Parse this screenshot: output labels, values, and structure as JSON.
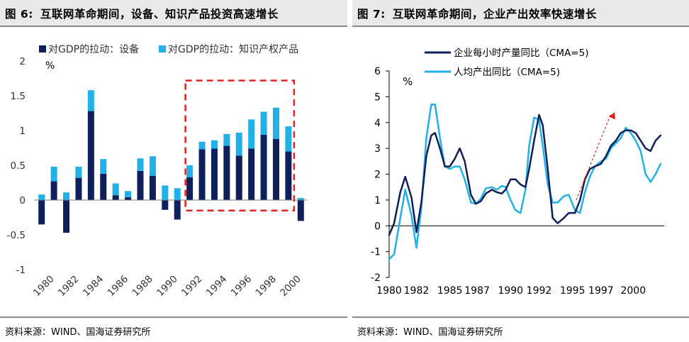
{
  "left": {
    "fig_label": "图 6:",
    "title": "互联网革命期间，设备、知识产品投资高速增长",
    "source": "资料来源：WIND、国海证券研究所",
    "chart_data": {
      "type": "bar",
      "stacked": true,
      "unit_label": "%",
      "ylim": [
        -1,
        2
      ],
      "yticks": [
        "2",
        "1.5",
        "1",
        "0.5",
        "0",
        "-0.5",
        "-1"
      ],
      "ytick_values": [
        2,
        1.5,
        1,
        0.5,
        0,
        -0.5,
        -1
      ],
      "categories": [
        1980,
        1981,
        1982,
        1983,
        1984,
        1985,
        1986,
        1987,
        1988,
        1989,
        1990,
        1991,
        1992,
        1993,
        1994,
        1995,
        1996,
        1997,
        1998,
        1999,
        2000,
        2001
      ],
      "xtick_labels": [
        "1980",
        "1982",
        "1984",
        "1986",
        "1988",
        "1990",
        "1992",
        "1994",
        "1996",
        "1998",
        "2000"
      ],
      "series": [
        {
          "name": "对GDP的拉动：设备",
          "color": "#0e1f5b",
          "values": [
            -0.35,
            0.27,
            -0.47,
            0.32,
            1.28,
            0.38,
            0.07,
            0.04,
            0.42,
            0.35,
            -0.14,
            -0.28,
            0.33,
            0.73,
            0.74,
            0.78,
            0.64,
            0.74,
            0.94,
            0.88,
            0.7,
            -0.3
          ]
        },
        {
          "name": "对GDP的拉动：知识产权产品",
          "color": "#21b1e8",
          "values": [
            0.08,
            0.21,
            0.11,
            0.16,
            0.3,
            0.21,
            0.17,
            0.09,
            0.18,
            0.28,
            0.21,
            0.17,
            0.17,
            0.11,
            0.12,
            0.17,
            0.33,
            0.42,
            0.33,
            0.45,
            0.36,
            0.03
          ]
        }
      ],
      "annotation": "red dashed box highlighting 1992–2000"
    }
  },
  "right": {
    "fig_label": "图 7:",
    "title": "互联网革命期间，企业产出效率快速增长",
    "source": "资料来源：WIND、国海证券研究所",
    "chart_data": {
      "type": "line",
      "unit_label": "%",
      "ylim": [
        -2,
        6
      ],
      "yticks": [
        "6",
        "5",
        "4",
        "3",
        "2",
        "1",
        "0",
        "-1",
        "-2"
      ],
      "ytick_values": [
        6,
        5,
        4,
        3,
        2,
        1,
        0,
        -1,
        -2
      ],
      "xlim": [
        1980,
        2002.2
      ],
      "xtick_values": [
        1980,
        1982.2,
        1984.9,
        1987.1,
        1989.8,
        1992.1,
        1994.8,
        1997.1,
        1999.7
      ],
      "xtick_labels": [
        "1980",
        "1982",
        "1985",
        "1987",
        "1990",
        "1992",
        "1995",
        "1997",
        "2000"
      ],
      "series": [
        {
          "name": "企业每小时产量同比（CMA=5)",
          "color": "#0e1f5b",
          "x": [
            1980,
            1980.4,
            1980.9,
            1981.3,
            1981.8,
            1982.2,
            1982.6,
            1983.0,
            1983.4,
            1983.7,
            1984.1,
            1984.5,
            1984.9,
            1985.3,
            1985.7,
            1986.1,
            1986.6,
            1987.0,
            1987.4,
            1987.8,
            1988.3,
            1988.7,
            1989.1,
            1989.4,
            1989.8,
            1990.2,
            1990.6,
            1991.0,
            1991.3,
            1991.7,
            1992.1,
            1992.4,
            1992.8,
            1993.2,
            1993.6,
            1994.1,
            1994.5,
            1995.0,
            1995.4,
            1995.8,
            1996.2,
            1996.6,
            1997.1,
            1997.5,
            1997.9,
            1998.3,
            1998.7,
            1999.1,
            1999.5,
            1999.9,
            2000.3,
            2000.7,
            2001.1,
            2001.5,
            2001.9
          ],
          "y": [
            -0.35,
            0.1,
            1.3,
            1.9,
            1.1,
            -0.25,
            0.9,
            2.7,
            3.5,
            3.6,
            3.0,
            2.3,
            2.3,
            2.6,
            3.0,
            2.5,
            1.2,
            0.85,
            0.95,
            1.25,
            1.4,
            1.3,
            1.25,
            1.4,
            1.8,
            1.8,
            1.6,
            1.5,
            2.2,
            3.3,
            4.3,
            3.9,
            2.2,
            0.3,
            0.1,
            0.3,
            0.5,
            0.5,
            1.0,
            1.8,
            2.2,
            2.3,
            2.4,
            2.7,
            3.1,
            3.3,
            3.6,
            3.7,
            3.7,
            3.6,
            3.3,
            3.0,
            2.9,
            3.3,
            3.5
          ]
        },
        {
          "name": "人均产出同比（CMA=5)",
          "color": "#21b1e8",
          "x": [
            1980,
            1980.4,
            1980.9,
            1981.3,
            1981.8,
            1982.2,
            1982.6,
            1983.0,
            1983.4,
            1983.7,
            1984.1,
            1984.5,
            1984.9,
            1985.3,
            1985.7,
            1986.1,
            1986.6,
            1987.0,
            1987.4,
            1987.8,
            1988.3,
            1988.7,
            1989.1,
            1989.4,
            1989.8,
            1990.2,
            1990.6,
            1991.0,
            1991.3,
            1991.7,
            1992.1,
            1992.4,
            1992.8,
            1993.2,
            1993.6,
            1994.1,
            1994.5,
            1995.0,
            1995.4,
            1995.8,
            1996.2,
            1996.6,
            1997.1,
            1997.5,
            1997.9,
            1998.3,
            1998.7,
            1999.1,
            1999.5,
            1999.9,
            2000.3,
            2000.7,
            2001.1,
            2001.5,
            2001.9
          ],
          "y": [
            -1.3,
            -1.1,
            0.3,
            1.4,
            0.4,
            -0.85,
            0.7,
            3.4,
            4.7,
            4.7,
            3.4,
            2.3,
            2.2,
            2.3,
            2.3,
            1.8,
            0.9,
            0.85,
            1.05,
            1.45,
            1.5,
            1.4,
            1.55,
            1.5,
            1.0,
            0.6,
            0.5,
            1.4,
            3.1,
            4.2,
            4.1,
            3.1,
            1.6,
            0.9,
            0.9,
            1.15,
            1.2,
            0.6,
            0.5,
            1.3,
            1.9,
            2.3,
            2.5,
            2.6,
            3.0,
            3.2,
            3.4,
            3.8,
            3.6,
            3.3,
            2.9,
            2.0,
            1.7,
            2.0,
            2.4
          ]
        }
      ],
      "annotation": "red dashed arrow indicating rising trend 1995–1998"
    }
  }
}
